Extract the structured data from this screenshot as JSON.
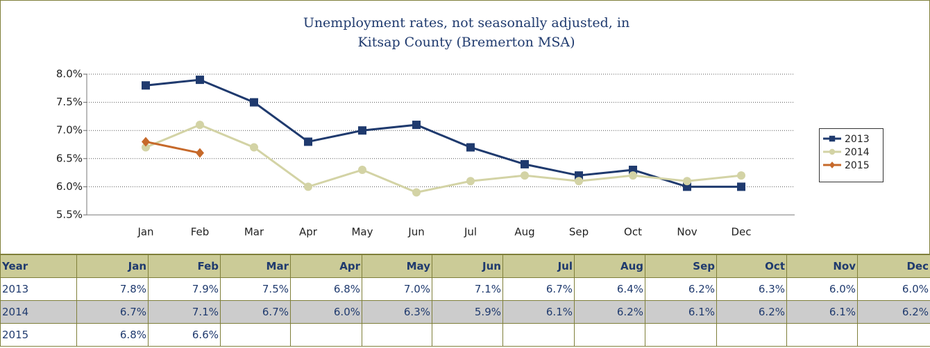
{
  "chart_data": {
    "type": "line",
    "title": [
      "Unemployment rates, not seasonally adjusted, in",
      "Kitsap County (Bremerton MSA)"
    ],
    "categories": [
      "Jan",
      "Feb",
      "Mar",
      "Apr",
      "May",
      "Jun",
      "Jul",
      "Aug",
      "Sep",
      "Oct",
      "Nov",
      "Dec"
    ],
    "series": [
      {
        "name": "2013",
        "color": "#1f3a6e",
        "marker": "square",
        "values": [
          7.8,
          7.9,
          7.5,
          6.8,
          7.0,
          7.1,
          6.7,
          6.4,
          6.2,
          6.3,
          6.0,
          6.0
        ]
      },
      {
        "name": "2014",
        "color": "#d3d3a5",
        "marker": "circle",
        "values": [
          6.7,
          7.1,
          6.7,
          6.0,
          6.3,
          5.9,
          6.1,
          6.2,
          6.1,
          6.2,
          6.1,
          6.2
        ]
      },
      {
        "name": "2015",
        "color": "#c6692a",
        "marker": "diamond",
        "values": [
          6.8,
          6.6,
          null,
          null,
          null,
          null,
          null,
          null,
          null,
          null,
          null,
          null
        ]
      }
    ],
    "ylim": [
      5.5,
      8.0
    ],
    "yticks": [
      {
        "value": 5.5,
        "label": "5.5%"
      },
      {
        "value": 6.0,
        "label": "6.0%"
      },
      {
        "value": 6.5,
        "label": "6.5%"
      },
      {
        "value": 7.0,
        "label": "7.0%"
      },
      {
        "value": 7.5,
        "label": "7.5%"
      },
      {
        "value": 8.0,
        "label": "8.0%"
      }
    ],
    "grid": true,
    "legend": "right"
  },
  "table": {
    "header": [
      "Year",
      "Jan",
      "Feb",
      "Mar",
      "Apr",
      "May",
      "Jun",
      "Jul",
      "Aug",
      "Sep",
      "Oct",
      "Nov",
      "Dec"
    ],
    "rows": [
      [
        "2013",
        "7.8%",
        "7.9%",
        "7.5%",
        "6.8%",
        "7.0%",
        "7.1%",
        "6.7%",
        "6.4%",
        "6.2%",
        "6.3%",
        "6.0%",
        "6.0%"
      ],
      [
        "2014",
        "6.7%",
        "7.1%",
        "6.7%",
        "6.0%",
        "6.3%",
        "5.9%",
        "6.1%",
        "6.2%",
        "6.1%",
        "6.2%",
        "6.1%",
        "6.2%"
      ],
      [
        "2015",
        "6.8%",
        "6.6%"
      ]
    ]
  }
}
